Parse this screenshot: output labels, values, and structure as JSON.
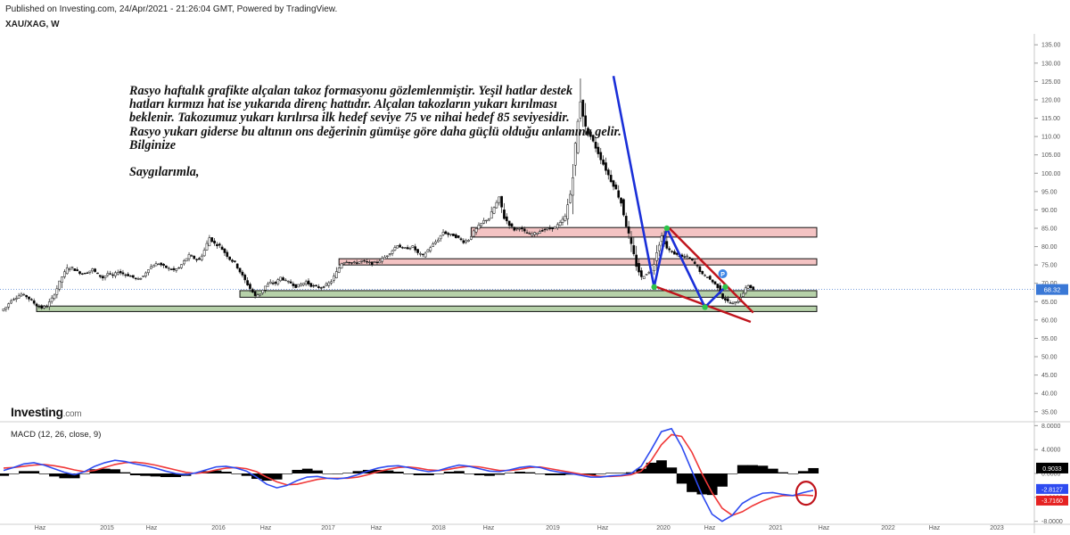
{
  "header": {
    "published": "Published on Investing.com, 24/Apr/2021 - 21:26:04 GMT, Powered by TradingView.",
    "symbol": "XAU/XAG, W"
  },
  "annotation": {
    "lines": [
      "Rasyo haftalık grafikte alçalan takoz formasyonu gözlemlenmiştir. Yeşil hatlar destek",
      "hatları kırmızı hat ise yukarıda direnç hattıdır. Alçalan takozların yukarı kırılması",
      "beklenir. Takozumuz yukarı kırılırsa ilk hedef seviye 75 ve nihai hedef 85 seviyesidir.",
      "Rasyo yukarı giderse bu altının ons değerinin gümüşe göre daha güçlü olduğu anlamına gelir.",
      "Bilginize"
    ],
    "signature": "Saygılarımla,"
  },
  "logo": {
    "main": "Investing",
    "suffix": ".com"
  },
  "colors": {
    "candle_up": "#ffffff",
    "candle_down": "#000000",
    "candle_wick": "#333333",
    "support_fill": "#a9c99a",
    "resistance_fill": "#f2b8b8",
    "wedge_line": "#c0141c",
    "blue_line": "#1a2fd8",
    "green_marker": "#2cc44a",
    "price_badge": "#3a78d6",
    "macd_line": "#2e4bf0",
    "signal_line": "#f03838",
    "macd_value_bg": "#000000",
    "macd_blue_bg": "#2e4bf0",
    "macd_red_bg": "#e52222"
  },
  "chart_data": [
    {
      "type": "candlestick",
      "title": "XAU/XAG, W",
      "y_range": [
        33.0,
        137.0
      ],
      "y_ticks": [
        "35.00",
        "40.00",
        "45.00",
        "50.00",
        "55.00",
        "60.00",
        "65.00",
        "70.00",
        "75.00",
        "80.00",
        "85.00",
        "90.00",
        "95.00",
        "100.00",
        "105.00",
        "110.00",
        "115.00",
        "120.00",
        "125.00",
        "130.00",
        "135.00"
      ],
      "x_labels": [
        "Haz",
        "2015",
        "Haz",
        "2016",
        "Haz",
        "2017",
        "Haz",
        "2018",
        "Haz",
        "2019",
        "Haz",
        "2020",
        "Haz",
        "2021",
        "Haz",
        "2022",
        "Haz",
        "2023"
      ],
      "last_price": "68.32",
      "close_series": [
        62.5,
        63.5,
        65.5,
        66.2,
        67.0,
        66.4,
        65.2,
        64.0,
        63.3,
        63.8,
        65.8,
        68.6,
        71.8,
        74.0,
        74.2,
        73.2,
        72.6,
        73.0,
        73.8,
        72.4,
        71.5,
        72.7,
        72.0,
        73.2,
        72.6,
        72.2,
        71.6,
        71.0,
        72.0,
        74.0,
        75.0,
        75.4,
        74.6,
        74.0,
        73.6,
        74.2,
        76.0,
        77.6,
        76.8,
        76.4,
        79.0,
        82.4,
        80.8,
        80.2,
        78.4,
        76.6,
        75.6,
        73.2,
        70.8,
        68.6,
        66.5,
        67.2,
        69.2,
        70.2,
        70.0,
        71.6,
        70.6,
        70.1,
        69.1,
        69.7,
        70.4,
        69.4,
        69.0,
        68.8,
        69.5,
        70.6,
        73.0,
        75.5,
        76.0,
        75.5,
        75.6,
        76.1,
        75.7,
        75.4,
        75.8,
        76.6,
        77.7,
        79.0,
        80.5,
        79.4,
        79.6,
        80.0,
        78.2,
        77.5,
        79.1,
        80.6,
        82.0,
        84.0,
        83.3,
        83.1,
        82.3,
        81.3,
        81.9,
        84.0,
        85.6,
        87.0,
        87.7,
        90.6,
        93.2,
        88.0,
        86.0,
        84.6,
        85.2,
        84.0,
        83.3,
        83.6,
        84.2,
        84.7,
        84.9,
        85.3,
        86.4,
        88.2,
        94.3,
        107.0,
        120.5,
        112.0,
        110.0,
        107.0,
        104.0,
        101.0,
        98.0,
        95.5,
        92.0,
        86.0,
        80.0,
        75.0,
        71.5,
        72.7,
        73.1,
        78.9,
        82.8,
        79.5,
        78.5,
        77.7,
        77.2,
        77.2,
        76.1,
        74.5,
        72.3,
        71.7,
        70.4,
        69.0,
        66.1,
        65.0,
        64.4,
        65.2,
        67.5,
        69.5,
        68.3
      ],
      "levels": {
        "support": [
          {
            "from_week": 13,
            "to_week": 320,
            "low": 62.3,
            "high": 63.8
          },
          {
            "from_week": 93,
            "to_week": 320,
            "low": 66.2,
            "high": 68.0
          }
        ],
        "resistance": [
          {
            "from_week": 132,
            "to_week": 320,
            "low": 75.0,
            "high": 76.7
          },
          {
            "from_week": 184,
            "to_week": 320,
            "low": 82.6,
            "high": 85.2
          }
        ]
      },
      "annotations": {
        "wedge_upper": [
          {
            "week": 262,
            "price": 85.0
          },
          {
            "week": 295,
            "price": 62.0
          }
        ],
        "wedge_lower": [
          {
            "week": 257,
            "price": 69.0
          },
          {
            "week": 294,
            "price": 59.5
          }
        ],
        "blue_zigzag": [
          {
            "week": 240,
            "price": 126.5
          },
          {
            "week": 256,
            "price": 69.0
          },
          {
            "week": 261,
            "price": 85.0
          },
          {
            "week": 276,
            "price": 63.5
          },
          {
            "week": 284,
            "price": 69.0
          }
        ],
        "green_points": [
          {
            "week": 256,
            "price": 69.0
          },
          {
            "week": 261,
            "price": 85.0
          },
          {
            "week": 276,
            "price": 63.5
          },
          {
            "week": 284,
            "price": 69.0
          }
        ],
        "badge_label": "P",
        "badge_point": {
          "week": 283,
          "price": 72.6
        }
      }
    },
    {
      "type": "line",
      "title": "MACD (12, 26, close, 9)",
      "y_range": [
        -8.2,
        8.2
      ],
      "y_ticks": [
        "8.0000",
        "4.0000",
        "0.0000",
        "-4.0000",
        "-8.0000"
      ],
      "series": [
        {
          "name": "MACD",
          "values": [
            0.5,
            1.0,
            1.6,
            1.8,
            1.4,
            0.8,
            0.2,
            -0.2,
            0.3,
            1.2,
            1.8,
            2.2,
            2.0,
            1.6,
            1.3,
            0.9,
            0.4,
            0.0,
            -0.2,
            0.1,
            0.6,
            1.1,
            1.2,
            0.9,
            0.4,
            -0.6,
            -1.8,
            -2.4,
            -2.0,
            -1.2,
            -0.6,
            -0.5,
            -0.8,
            -0.9,
            -0.7,
            -0.2,
            0.4,
            0.9,
            1.2,
            1.3,
            1.0,
            0.6,
            0.3,
            0.5,
            1.0,
            1.4,
            1.2,
            0.8,
            0.4,
            0.3,
            0.6,
            1.0,
            1.2,
            1.0,
            0.5,
            0.2,
            0.0,
            -0.3,
            -0.6,
            -0.6,
            -0.4,
            -0.3,
            0.0,
            1.2,
            4.0,
            7.0,
            7.5,
            4.5,
            0.5,
            -3.5,
            -6.8,
            -8.0,
            -7.0,
            -5.0,
            -4.0,
            -3.3,
            -3.2,
            -3.5,
            -3.7,
            -3.2,
            -2.81
          ]
        },
        {
          "name": "Signal",
          "values": [
            0.9,
            1.0,
            1.2,
            1.4,
            1.5,
            1.3,
            1.0,
            0.6,
            0.3,
            0.5,
            1.0,
            1.5,
            1.8,
            1.9,
            1.7,
            1.4,
            1.0,
            0.6,
            0.2,
            0.0,
            0.2,
            0.6,
            0.9,
            1.0,
            0.8,
            0.3,
            -0.6,
            -1.4,
            -1.9,
            -1.8,
            -1.4,
            -1.0,
            -0.8,
            -0.8,
            -0.8,
            -0.6,
            -0.2,
            0.3,
            0.7,
            1.0,
            1.1,
            0.9,
            0.6,
            0.5,
            0.7,
            1.0,
            1.2,
            1.1,
            0.8,
            0.5,
            0.5,
            0.7,
            1.0,
            1.1,
            0.8,
            0.5,
            0.2,
            -0.1,
            -0.3,
            -0.5,
            -0.5,
            -0.4,
            -0.2,
            0.4,
            2.2,
            4.8,
            6.5,
            6.2,
            3.6,
            0.0,
            -3.2,
            -5.8,
            -7.0,
            -6.4,
            -5.4,
            -4.6,
            -4.0,
            -3.7,
            -3.7,
            -3.6,
            -3.716
          ]
        },
        {
          "name": "Histogram",
          "values": [
            -0.4,
            0.0,
            0.4,
            0.4,
            -0.1,
            -0.5,
            -0.8,
            -0.8,
            0.0,
            0.7,
            0.8,
            0.7,
            0.2,
            -0.3,
            -0.4,
            -0.5,
            -0.6,
            -0.6,
            -0.4,
            0.1,
            0.4,
            0.5,
            0.3,
            -0.1,
            -0.4,
            -0.9,
            -1.2,
            -1.0,
            -0.1,
            0.6,
            0.8,
            0.5,
            0.0,
            -0.1,
            0.1,
            0.4,
            0.6,
            0.6,
            0.5,
            0.3,
            -0.1,
            -0.3,
            -0.3,
            0.0,
            0.3,
            0.4,
            0.0,
            -0.3,
            -0.4,
            -0.2,
            0.1,
            0.3,
            0.2,
            -0.1,
            -0.3,
            -0.3,
            -0.2,
            -0.2,
            -0.3,
            -0.1,
            0.1,
            0.1,
            0.2,
            0.8,
            1.8,
            2.2,
            1.0,
            -1.7,
            -3.1,
            -3.5,
            -3.6,
            -2.2,
            0.0,
            1.4,
            1.4,
            1.3,
            0.8,
            0.2,
            0.0,
            0.4,
            0.9
          ]
        }
      ],
      "readouts": {
        "histogram": "0.9033",
        "macd": "-2.8127",
        "signal": "-3.7160"
      }
    }
  ]
}
